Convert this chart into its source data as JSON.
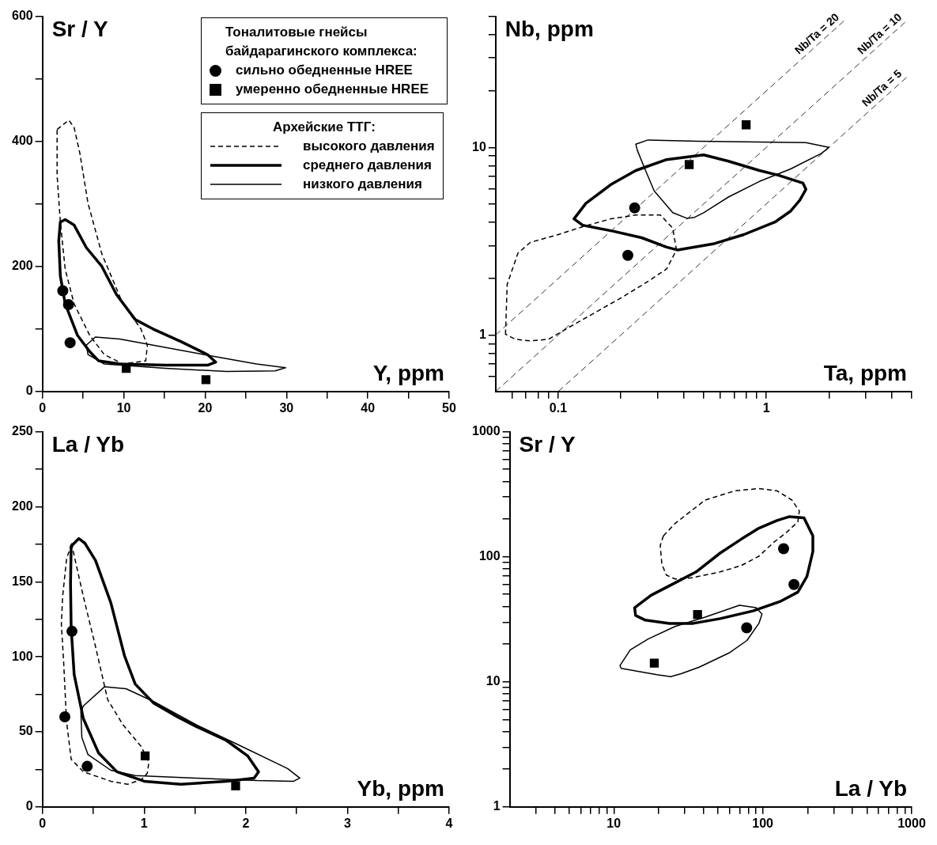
{
  "chart_data": [
    {
      "type": "scatter",
      "xlabel": "Y, ppm",
      "ylabel": "Sr / Y",
      "legend": "top right",
      "legend_title": "Тоналитовые гнейсы байдарагинского комплекса:",
      "annotations": [
        "Архейские ТТГ:",
        "высокого давления",
        "среднего давления",
        "низкого давления"
      ],
      "xlim": [
        0,
        50
      ],
      "ylim": [
        0,
        600
      ],
      "xticks": [
        0,
        {
          "value": 5,
          "label": null
        },
        10,
        {
          "value": 15,
          "label": null
        },
        20,
        {
          "value": 25,
          "label": null
        },
        30,
        {
          "value": 35,
          "label": null
        },
        40,
        {
          "value": 45,
          "label": null
        },
        50
      ],
      "yticks": [
        0,
        {
          "value": 100,
          "label": null
        },
        200,
        {
          "value": 300,
          "label": null
        },
        400,
        {
          "value": 500,
          "label": null
        },
        600
      ],
      "series": [
        {
          "name": "сильно обедненные HREE",
          "type": "scatter",
          "marker": "circle",
          "color": "#000000",
          "x": [
            2.5,
            3.2,
            3.4
          ],
          "values": [
            161,
            139,
            78
          ]
        },
        {
          "name": "умеренно обедненные HREE",
          "type": "scatter",
          "marker": "square",
          "color": "#000000",
          "x": [
            10.3,
            20.1
          ],
          "values": [
            37,
            19
          ]
        }
      ]
    },
    {
      "type": "scatter",
      "xlabel": "Ta, ppm",
      "ylabel": "Nb, ppm",
      "log": "xy",
      "xlim": [
        0.05,
        5
      ],
      "ylim": [
        0.5,
        50
      ],
      "xticks": [
        {
          "value": 0.06,
          "label": null
        },
        {
          "value": 0.07,
          "label": null
        },
        {
          "value": 0.08,
          "label": null
        },
        {
          "value": 0.09,
          "label": null
        },
        0.1,
        {
          "value": 0.2,
          "label": null
        },
        {
          "value": 0.3,
          "label": null
        },
        {
          "value": 0.4,
          "label": null
        },
        {
          "value": 0.5,
          "label": null
        },
        {
          "value": 0.6,
          "label": null
        },
        {
          "value": 0.7,
          "label": null
        },
        {
          "value": 0.8,
          "label": null
        },
        {
          "value": 0.9,
          "label": null
        },
        1,
        {
          "value": 2,
          "label": null
        },
        {
          "value": 3,
          "label": null
        },
        {
          "value": 4,
          "label": null
        },
        {
          "value": 5,
          "label": null
        }
      ],
      "yticks": [
        {
          "value": 0.6,
          "label": null
        },
        {
          "value": 0.7,
          "label": null
        },
        {
          "value": 0.8,
          "label": null
        },
        {
          "value": 0.9,
          "label": null
        },
        1,
        {
          "value": 2,
          "label": null
        },
        {
          "value": 3,
          "label": null
        },
        {
          "value": 4,
          "label": null
        },
        {
          "value": 5,
          "label": null
        },
        {
          "value": 6,
          "label": null
        },
        {
          "value": 7,
          "label": null
        },
        {
          "value": 8,
          "label": null
        },
        {
          "value": 9,
          "label": null
        },
        10,
        {
          "value": 20,
          "label": null
        },
        {
          "value": 30,
          "label": null
        },
        {
          "value": 40,
          "label": null
        },
        {
          "value": 50,
          "label": null
        }
      ],
      "series": [
        {
          "type": "scatter",
          "marker": "circle",
          "color": "#000000",
          "x": [
            0.233,
            0.216
          ],
          "values": [
            4.76,
            2.66
          ]
        },
        {
          "type": "scatter",
          "marker": "square",
          "color": "#000000",
          "x": [
            0.426,
            0.8
          ],
          "values": [
            8.1,
            13.2
          ]
        },
        {
          "name": "Nb/Ta = 20",
          "type": "line",
          "line_style": "dashed",
          "color": "#333333",
          "x": [
            0.05,
            2.4
          ],
          "values": [
            1,
            48
          ]
        },
        {
          "name": "Nb/Ta = 10",
          "type": "line",
          "line_style": "dashed",
          "color": "#333333",
          "x": [
            0.05,
            4.8
          ],
          "values": [
            0.5,
            48
          ]
        },
        {
          "name": "Nb/Ta = 5",
          "type": "line",
          "line_style": "dashed",
          "color": "#333333",
          "x": [
            0.1,
            4.8
          ],
          "values": [
            0.5,
            24
          ]
        }
      ]
    },
    {
      "type": "scatter",
      "xlabel": "Yb, ppm",
      "ylabel": "La / Yb",
      "xlim": [
        0,
        4
      ],
      "ylim": [
        0,
        250
      ],
      "xticks": [
        0,
        {
          "value": 0.5,
          "label": null
        },
        1,
        {
          "value": 1.5,
          "label": null
        },
        2,
        {
          "value": 2.5,
          "label": null
        },
        3,
        {
          "value": 3.5,
          "label": null
        },
        4
      ],
      "yticks": [
        0,
        {
          "value": 25,
          "label": null
        },
        50,
        {
          "value": 75,
          "label": null
        },
        100,
        {
          "value": 125,
          "label": null
        },
        150,
        {
          "value": 175,
          "label": null
        },
        200,
        {
          "value": 225,
          "label": null
        },
        250
      ],
      "series": [
        {
          "type": "scatter",
          "marker": "circle",
          "color": "#000000",
          "x": [
            0.29,
            0.22,
            0.44
          ],
          "values": [
            117,
            60,
            27
          ]
        },
        {
          "type": "scatter",
          "marker": "square",
          "color": "#000000",
          "x": [
            1.01,
            1.9
          ],
          "values": [
            34,
            14
          ]
        }
      ]
    },
    {
      "type": "scatter",
      "xlabel": "La / Yb",
      "ylabel": "Sr / Y",
      "log": "xy",
      "xlim": [
        2,
        1000
      ],
      "ylim": [
        1,
        1000
      ],
      "xticks": [
        {
          "value": 3,
          "label": null
        },
        {
          "value": 4,
          "label": null
        },
        {
          "value": 5,
          "label": null
        },
        {
          "value": 6,
          "label": null
        },
        {
          "value": 7,
          "label": null
        },
        {
          "value": 8,
          "label": null
        },
        {
          "value": 9,
          "label": null
        },
        10,
        {
          "value": 20,
          "label": null
        },
        {
          "value": 30,
          "label": null
        },
        {
          "value": 40,
          "label": null
        },
        {
          "value": 50,
          "label": null
        },
        {
          "value": 60,
          "label": null
        },
        {
          "value": 70,
          "label": null
        },
        {
          "value": 80,
          "label": null
        },
        {
          "value": 90,
          "label": null
        },
        100,
        {
          "value": 200,
          "label": null
        },
        {
          "value": 300,
          "label": null
        },
        {
          "value": 400,
          "label": null
        },
        {
          "value": 500,
          "label": null
        },
        {
          "value": 600,
          "label": null
        },
        {
          "value": 700,
          "label": null
        },
        {
          "value": 800,
          "label": null
        },
        {
          "value": 900,
          "label": null
        },
        1000
      ],
      "yticks": [
        1,
        {
          "value": 2,
          "label": null
        },
        {
          "value": 3,
          "label": null
        },
        {
          "value": 4,
          "label": null
        },
        {
          "value": 5,
          "label": null
        },
        {
          "value": 6,
          "label": null
        },
        {
          "value": 7,
          "label": null
        },
        {
          "value": 8,
          "label": null
        },
        {
          "value": 9,
          "label": null
        },
        10,
        {
          "value": 20,
          "label": null
        },
        {
          "value": 30,
          "label": null
        },
        {
          "value": 40,
          "label": null
        },
        {
          "value": 50,
          "label": null
        },
        {
          "value": 60,
          "label": null
        },
        {
          "value": 70,
          "label": null
        },
        {
          "value": 80,
          "label": null
        },
        {
          "value": 90,
          "label": null
        },
        100,
        {
          "value": 200,
          "label": null
        },
        {
          "value": 300,
          "label": null
        },
        {
          "value": 400,
          "label": null
        },
        {
          "value": 500,
          "label": null
        },
        {
          "value": 600,
          "label": null
        },
        {
          "value": 700,
          "label": null
        },
        {
          "value": 800,
          "label": null
        },
        {
          "value": 900,
          "label": null
        },
        1000
      ],
      "series": [
        {
          "type": "scatter",
          "marker": "circle",
          "color": "#000000",
          "x": [
            138,
            162,
            78
          ],
          "values": [
            116,
            60,
            27
          ]
        },
        {
          "type": "scatter",
          "marker": "square",
          "color": "#000000",
          "x": [
            36.5,
            18.7
          ],
          "values": [
            34.5,
            14.1
          ]
        }
      ]
    }
  ]
}
